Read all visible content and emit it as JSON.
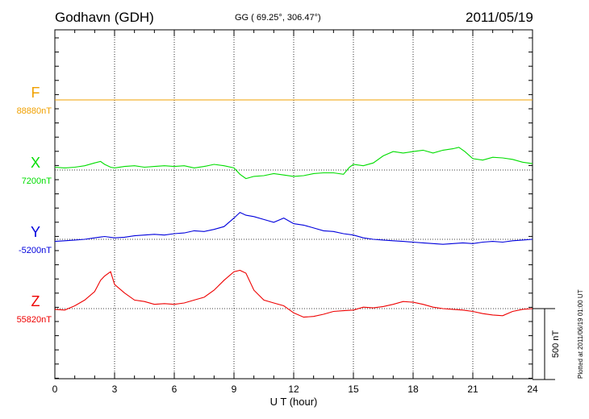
{
  "header": {
    "station": "Godhavn (GDH)",
    "coords": "GG ( 69.25°, 306.47°)",
    "date": "2011/05/19"
  },
  "footer": "Plotted at 2011/06/19 01:00 UT",
  "chart_data": {
    "type": "line",
    "xlabel": "U T (hour)",
    "xlim": [
      0,
      24
    ],
    "x_ticks": [
      0,
      3,
      6,
      9,
      12,
      15,
      18,
      21,
      24
    ],
    "scale_bar": {
      "label": "500 nT",
      "nT": 500
    },
    "components": [
      {
        "name": "F",
        "base_label": "88880nT",
        "color": "#f0a000",
        "x": [
          0,
          24
        ],
        "values": [
          0,
          0
        ]
      },
      {
        "name": "X",
        "base_label": "7200nT",
        "color": "#00dd00",
        "x": [
          0,
          0.5,
          1,
          1.5,
          2,
          2.3,
          2.5,
          2.8,
          3,
          3.5,
          4,
          4.5,
          5,
          5.5,
          6,
          6.5,
          7,
          7.5,
          8,
          8.5,
          9,
          9.3,
          9.6,
          10,
          10.5,
          11,
          11.5,
          12,
          12.5,
          13,
          13.5,
          14,
          14.5,
          14.8,
          15,
          15.5,
          16,
          16.5,
          17,
          17.5,
          18,
          18.5,
          19,
          19.5,
          20,
          20.3,
          20.6,
          21,
          21.5,
          22,
          22.5,
          23,
          23.5,
          24
        ],
        "values": [
          20,
          15,
          20,
          30,
          50,
          60,
          40,
          20,
          15,
          25,
          30,
          20,
          25,
          30,
          25,
          30,
          15,
          25,
          40,
          30,
          15,
          -30,
          -60,
          -45,
          -40,
          -25,
          -35,
          -45,
          -40,
          -25,
          -20,
          -20,
          -30,
          20,
          40,
          30,
          50,
          100,
          130,
          120,
          130,
          140,
          120,
          140,
          150,
          160,
          130,
          80,
          70,
          90,
          85,
          75,
          55,
          45
        ]
      },
      {
        "name": "Y",
        "base_label": "-5200nT",
        "color": "#0000dd",
        "x": [
          0,
          0.5,
          1,
          1.5,
          2,
          2.5,
          3,
          3.5,
          4,
          4.5,
          5,
          5.5,
          6,
          6.5,
          7,
          7.5,
          8,
          8.5,
          9,
          9.3,
          9.6,
          10,
          10.5,
          11,
          11.5,
          12,
          12.5,
          13,
          13.5,
          14,
          14.5,
          15,
          15.5,
          16,
          16.5,
          17,
          17.5,
          18,
          18.5,
          19,
          19.5,
          20,
          20.5,
          21,
          21.5,
          22,
          22.5,
          23,
          23.5,
          24
        ],
        "values": [
          -15,
          -10,
          -5,
          0,
          10,
          20,
          10,
          15,
          25,
          30,
          35,
          30,
          40,
          45,
          60,
          55,
          70,
          90,
          150,
          190,
          170,
          160,
          140,
          120,
          150,
          110,
          100,
          80,
          60,
          55,
          40,
          30,
          10,
          0,
          -5,
          -10,
          -15,
          -20,
          -25,
          -30,
          -35,
          -30,
          -25,
          -30,
          -20,
          -15,
          -20,
          -10,
          -5,
          0
        ]
      },
      {
        "name": "Z",
        "base_label": "55820nT",
        "color": "#ee0000",
        "x": [
          0,
          0.5,
          1,
          1.5,
          2,
          2.3,
          2.5,
          2.8,
          3,
          3.5,
          4,
          4.5,
          5,
          5.5,
          6,
          6.5,
          7,
          7.5,
          8,
          8.5,
          9,
          9.3,
          9.6,
          10,
          10.5,
          11,
          11.5,
          12,
          12.5,
          13,
          13.5,
          14,
          14.5,
          15,
          15.5,
          16,
          16.5,
          17,
          17.5,
          18,
          18.5,
          19,
          19.5,
          20,
          20.5,
          21,
          21.5,
          22,
          22.5,
          23,
          23.5,
          24
        ],
        "values": [
          -5,
          -10,
          20,
          60,
          120,
          200,
          230,
          260,
          170,
          110,
          60,
          50,
          30,
          35,
          30,
          40,
          60,
          80,
          130,
          200,
          260,
          270,
          250,
          130,
          60,
          40,
          20,
          -30,
          -60,
          -55,
          -40,
          -20,
          -15,
          -10,
          10,
          5,
          15,
          30,
          50,
          45,
          30,
          10,
          0,
          -5,
          -10,
          -20,
          -35,
          -45,
          -50,
          -20,
          -5,
          0
        ]
      }
    ]
  }
}
